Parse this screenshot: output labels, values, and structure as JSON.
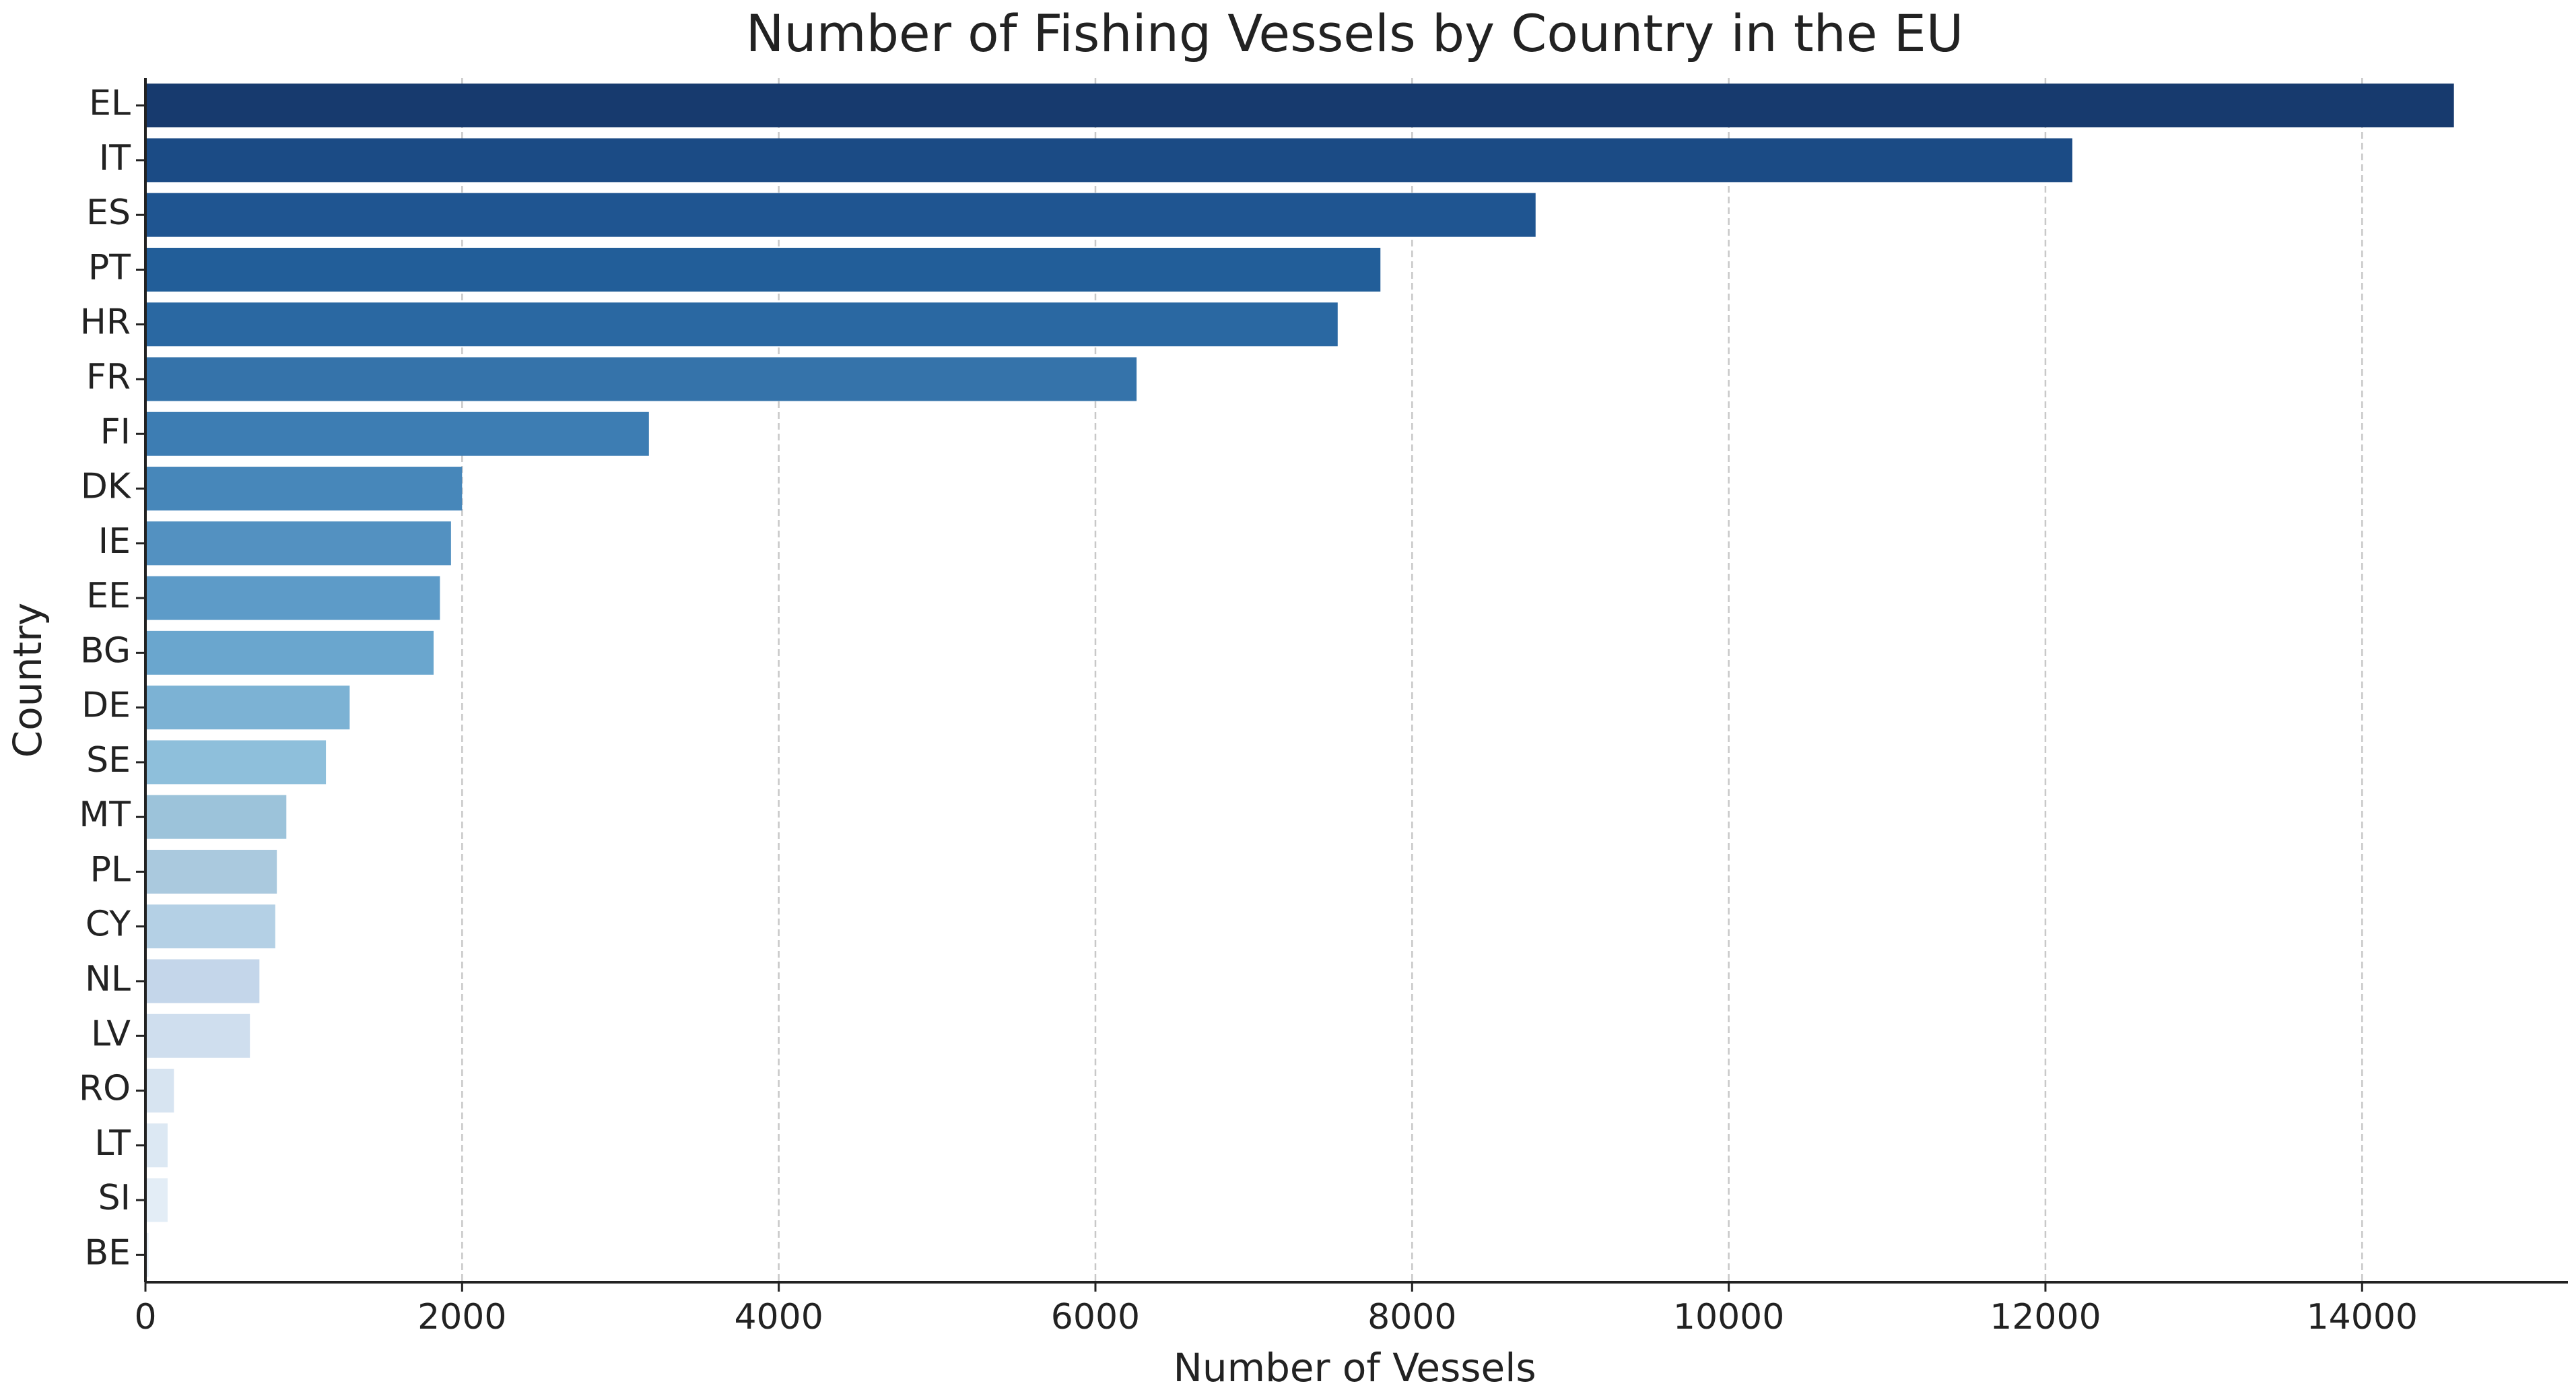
{
  "chart_data": {
    "type": "barh",
    "title": "Number of Fishing Vessels by Country in the EU",
    "x_label": "Number of Vessels",
    "y_label": "Country",
    "categories": [
      "EL",
      "IT",
      "ES",
      "PT",
      "HR",
      "FR",
      "FI",
      "DK",
      "IE",
      "EE",
      "BG",
      "DE",
      "SE",
      "MT",
      "PL",
      "CY",
      "NL",
      "LV",
      "RO",
      "LT",
      "SI",
      "BE"
    ],
    "values": [
      14580,
      12170,
      8780,
      7800,
      7530,
      6260,
      3180,
      2000,
      1930,
      1860,
      1820,
      1290,
      1140,
      890,
      830,
      820,
      720,
      660,
      180,
      140,
      140,
      20
    ],
    "colors": [
      "#173a6e",
      "#1b4b85",
      "#1f5591",
      "#225e99",
      "#2a68a2",
      "#3573aa",
      "#3d7db3",
      "#4787ba",
      "#5391c1",
      "#5d9bc8",
      "#6aa6ce",
      "#7cb2d4",
      "#8ebfdb",
      "#9cc3da",
      "#aac9de",
      "#b4d0e5",
      "#c4d6ea",
      "#cfdeee",
      "#d7e4f1",
      "#dce8f3",
      "#e3edf6",
      "#e9f1f8"
    ],
    "xlim": [
      0,
      15300
    ],
    "xticks": [
      0,
      2000,
      4000,
      6000,
      8000,
      10000,
      12000,
      14000
    ],
    "grid": true
  }
}
